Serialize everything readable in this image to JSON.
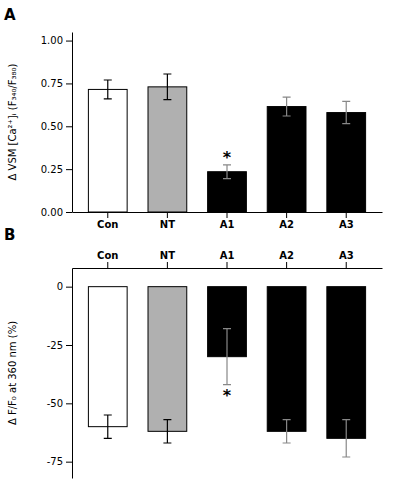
{
  "chart_data": [
    {
      "type": "bar",
      "title": "A",
      "ylabel": "Δ VSM [Ca²⁺]ᵢ (F₃₄₀/F₃₈₀)",
      "categories": [
        "Con",
        "NT",
        "A1",
        "A2",
        "A3"
      ],
      "values": [
        0.715,
        0.73,
        0.235,
        0.615,
        0.58
      ],
      "errors": [
        0.055,
        0.075,
        0.04,
        0.055,
        0.065
      ],
      "colors": [
        "white",
        "#b0b0b0",
        "black",
        "black",
        "black"
      ],
      "ylim": [
        0.0,
        1.05
      ],
      "yticks": [
        {
          "value": 0.0,
          "label": "0.00"
        },
        {
          "value": 0.25,
          "label": "0.25"
        },
        {
          "value": 0.5,
          "label": "0.50"
        },
        {
          "value": 0.75,
          "label": "0.75"
        },
        {
          "value": 1.0,
          "label": "1.00"
        }
      ],
      "annotations": [
        {
          "text": "*",
          "x": "A1"
        }
      ]
    },
    {
      "type": "bar",
      "title": "B",
      "ylabel": "Δ F/F₀ at 360 nm (%)",
      "categories": [
        "Con",
        "NT",
        "A1",
        "A2",
        "A3"
      ],
      "values": [
        -60.0,
        -62.0,
        -30.0,
        -62.0,
        -65.0
      ],
      "errors": [
        5.0,
        5.0,
        12.0,
        5.0,
        8.0
      ],
      "colors": [
        "white",
        "#b0b0b0",
        "black",
        "black",
        "black"
      ],
      "ylim": [
        -82,
        8
      ],
      "yticks": [
        -75,
        -50,
        -25,
        0
      ],
      "annotations": [
        {
          "text": "*",
          "x": "A1"
        }
      ]
    }
  ]
}
